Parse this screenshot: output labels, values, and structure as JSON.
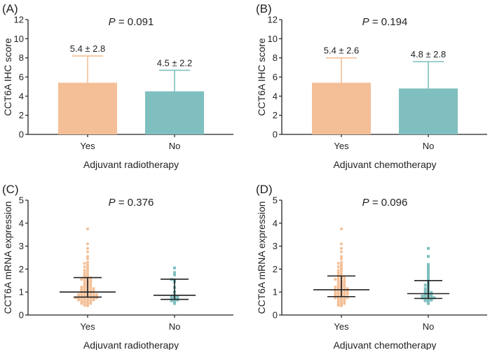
{
  "chart_data": [
    {
      "panel": "(A)",
      "type": "bar",
      "title_prefix": "P",
      "title_rest": " = 0.091",
      "ylabel": "CCT6A IHC score",
      "xlabel": "Adjuvant radiotherapy",
      "ylim": [
        0,
        12
      ],
      "yticks": [
        "0",
        "2",
        "4",
        "6",
        "8",
        "10",
        "12"
      ],
      "categories": [
        "Yes",
        "No"
      ],
      "values": [
        5.4,
        4.5
      ],
      "errors": [
        2.8,
        2.2
      ],
      "data_labels": [
        "5.4 ± 2.8",
        "4.5 ± 2.2"
      ],
      "colors": [
        "#f4bf96",
        "#7fbfbf"
      ]
    },
    {
      "panel": "(B)",
      "type": "bar",
      "title_prefix": "P",
      "title_rest": " = 0.194",
      "ylabel": "CCT6A IHC score",
      "xlabel": "Adjuvant chemotherapy",
      "ylim": [
        0,
        12
      ],
      "yticks": [
        "0",
        "2",
        "4",
        "6",
        "8",
        "10",
        "12"
      ],
      "categories": [
        "Yes",
        "No"
      ],
      "values": [
        5.4,
        4.8
      ],
      "errors": [
        2.6,
        2.8
      ],
      "data_labels": [
        "5.4 ± 2.6",
        "4.8 ± 2.8"
      ],
      "colors": [
        "#f4bf96",
        "#7fbfbf"
      ]
    },
    {
      "panel": "(C)",
      "type": "scatter",
      "title_prefix": "P",
      "title_rest": " = 0.376",
      "ylabel": "CCT6A mRNA expression",
      "xlabel": "Adjuvant radiotherapy",
      "ylim": [
        0,
        5
      ],
      "yticks": [
        "0",
        "1",
        "2",
        "3",
        "4",
        "5"
      ],
      "categories": [
        "Yes",
        "No"
      ],
      "medians": [
        1.0,
        0.86
      ],
      "iqr": [
        [
          0.78,
          1.63
        ],
        [
          0.68,
          1.56
        ]
      ],
      "colors": [
        "#f4bf96",
        "#7fbfbf"
      ],
      "points": [
        [
          0.4,
          0.42,
          0.45,
          0.47,
          0.5,
          0.5,
          0.52,
          0.55,
          0.55,
          0.58,
          0.6,
          0.6,
          0.62,
          0.62,
          0.65,
          0.65,
          0.68,
          0.68,
          0.7,
          0.7,
          0.72,
          0.72,
          0.74,
          0.75,
          0.76,
          0.78,
          0.78,
          0.8,
          0.8,
          0.82,
          0.82,
          0.84,
          0.85,
          0.86,
          0.88,
          0.88,
          0.9,
          0.9,
          0.92,
          0.94,
          0.95,
          0.96,
          0.98,
          1.0,
          1.0,
          1.02,
          1.04,
          1.05,
          1.08,
          1.1,
          1.1,
          1.12,
          1.15,
          1.18,
          1.2,
          1.2,
          1.22,
          1.25,
          1.28,
          1.3,
          1.32,
          1.35,
          1.38,
          1.4,
          1.42,
          1.45,
          1.48,
          1.5,
          1.52,
          1.55,
          1.58,
          1.6,
          1.62,
          1.65,
          1.7,
          1.72,
          1.75,
          1.8,
          1.85,
          1.9,
          1.95,
          2.0,
          2.05,
          2.1,
          2.15,
          2.2,
          2.25,
          2.3,
          2.45,
          2.55,
          2.75,
          2.9,
          3.1,
          3.75
        ],
        [
          0.5,
          0.55,
          0.6,
          0.62,
          0.65,
          0.7,
          0.72,
          0.75,
          0.78,
          0.8,
          0.82,
          0.85,
          1.0,
          1.2,
          1.45,
          1.5,
          1.55,
          1.75,
          1.85,
          2.05
        ]
      ]
    },
    {
      "panel": "(D)",
      "type": "scatter",
      "title_prefix": "P",
      "title_rest": " = 0.096",
      "ylabel": "CCT6A mRNA expression",
      "xlabel": "Adjuvant chemotherapy",
      "ylim": [
        0,
        5
      ],
      "yticks": [
        "0",
        "1",
        "2",
        "3",
        "4",
        "5"
      ],
      "categories": [
        "Yes",
        "No"
      ],
      "medians": [
        1.1,
        0.93
      ],
      "iqr": [
        [
          0.8,
          1.7
        ],
        [
          0.72,
          1.5
        ]
      ],
      "colors": [
        "#f4bf96",
        "#7fbfbf"
      ],
      "points": [
        [
          0.4,
          0.42,
          0.45,
          0.47,
          0.5,
          0.52,
          0.55,
          0.58,
          0.6,
          0.62,
          0.65,
          0.68,
          0.7,
          0.72,
          0.74,
          0.75,
          0.76,
          0.78,
          0.8,
          0.82,
          0.84,
          0.85,
          0.86,
          0.88,
          0.9,
          0.92,
          0.94,
          0.95,
          0.96,
          0.98,
          1.0,
          1.0,
          1.02,
          1.04,
          1.05,
          1.08,
          1.1,
          1.1,
          1.12,
          1.15,
          1.18,
          1.2,
          1.2,
          1.22,
          1.25,
          1.28,
          1.3,
          1.32,
          1.35,
          1.38,
          1.4,
          1.42,
          1.45,
          1.48,
          1.5,
          1.52,
          1.55,
          1.58,
          1.6,
          1.62,
          1.65,
          1.7,
          1.72,
          1.75,
          1.8,
          1.85,
          1.9,
          1.95,
          2.0,
          2.05,
          2.1,
          2.15,
          2.2,
          2.25,
          2.3,
          2.45,
          2.55,
          2.75,
          2.9,
          3.1,
          3.75
        ],
        [
          0.5,
          0.55,
          0.6,
          0.62,
          0.65,
          0.68,
          0.7,
          0.72,
          0.74,
          0.75,
          0.78,
          0.8,
          0.8,
          0.82,
          0.85,
          0.88,
          0.9,
          0.92,
          0.95,
          0.98,
          1.0,
          1.05,
          1.1,
          1.15,
          1.2,
          1.25,
          1.3,
          1.35,
          1.4,
          1.5,
          1.6,
          1.7,
          1.8,
          1.9,
          2.0,
          2.1,
          2.2,
          2.55,
          2.9
        ]
      ]
    }
  ]
}
